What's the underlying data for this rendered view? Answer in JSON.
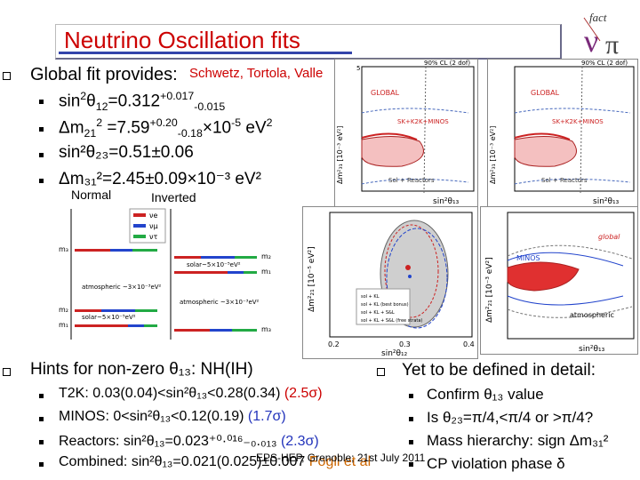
{
  "header": {
    "title": "Neutrino Oscillation fits",
    "logo_text": "fact"
  },
  "global_fit": {
    "heading": "Global fit provides:",
    "authors": "Schwetz, Tortola, Valle",
    "lines": [
      {
        "pre": "sin",
        "sup1": "2",
        "mid": "θ",
        "sub1": "12",
        "val": "=0.312",
        "sup2": "+0.017",
        "sub2": "-0.015",
        "post": ""
      },
      {
        "pre": "Δm",
        "sub1": "21",
        "sup1": "2",
        "val": " =7.59",
        "sup2": "+0.20",
        "sub2": "-0.18",
        "post": "×10",
        "sup3": "-5",
        "unit": " eV",
        "sup4": "2"
      },
      {
        "text": "sin²θ₂₃=0.51±0.06"
      },
      {
        "text": "Δm₃₁²=2.45±0.09×10⁻³ eV²"
      }
    ]
  },
  "hierarchy": {
    "normal_label": "Normal",
    "inverted_label": "Inverted",
    "legend": [
      "νe",
      "νμ",
      "ντ"
    ],
    "labels": [
      "atmospheric ~3×10⁻³eV²",
      "solar~5×10⁻⁵eV²",
      "solar~5×10⁻⁵eV²",
      "atmospheric ~3×10⁻³eV²"
    ]
  },
  "plots": {
    "p1": {
      "top_note": "90% CL (2 dof)",
      "global": "GLOBAL",
      "sk": "SK+K2K+MINOS",
      "sol": "Sol + Reactors",
      "ylabel": "Δm²₃₁ [10⁻³ eV²]",
      "xlabel": "sin²θ₁₃"
    },
    "p2": {
      "top_note": "90% CL (2 dof)",
      "global": "GLOBAL",
      "sk": "SK+K2K+MINOS",
      "sol": "Sol + Reactors",
      "ylabel": "Δm²₃₁ [10⁻³ eV²]",
      "xlabel": "sin²θ₁₃"
    },
    "p3": {
      "ylabel": "Δm²₂₁ [10⁻⁵ eV²]",
      "xlabel": "sin²θ₁₂",
      "xticks": [
        "0.2",
        "0.3",
        "0.4"
      ],
      "legend": [
        "sol + KL",
        "sol + KL (best bonus)",
        "sol + KL + S&L",
        "sol + KL + S&L (free strata)"
      ]
    },
    "p4": {
      "ylabel": "Δm²₂₁ [10⁻³ eV²]",
      "xlabel": "sin²θ₁₃",
      "minos": "MINOS",
      "global": "global",
      "atm": "atmospheric"
    }
  },
  "theta13": {
    "heading": "Hints for non-zero θ₁₃: NH(IH)",
    "items": [
      {
        "text": "T2K: 0.03(0.04)<sin²θ₁₃<0.28(0.34) ",
        "sig": "(2.5σ)",
        "color": "#cc0000"
      },
      {
        "text": "MINOS: 0<sin²θ₁₃<0.12(0.19) ",
        "sig": "(1.7σ)",
        "color": "#3344cc"
      },
      {
        "text": "Reactors: sin²θ₁₃=0.023⁺⁰·⁰¹⁶₋₀.₀₁₃ ",
        "sig": "(2.3σ)",
        "color": "#3344cc"
      },
      {
        "text": "Combined: sin²θ₁₃=0.021(0.025)±0.007 ",
        "sig": "Fogli et al",
        "color": "#cc6600"
      }
    ]
  },
  "todo": {
    "heading": "Yet to be defined in detail:",
    "items": [
      "Confirm θ₁₃ value",
      "Is θ₂₃=π/4,<π/4 or >π/4?",
      "Mass hierarchy:  sign Δm₃₁²",
      "CP violation phase δ"
    ]
  },
  "footer": {
    "conference": "EPS-HEP, Grenoble; 21st July 2011"
  },
  "colors": {
    "title": "#cc0000",
    "accent": "#3344aa"
  }
}
